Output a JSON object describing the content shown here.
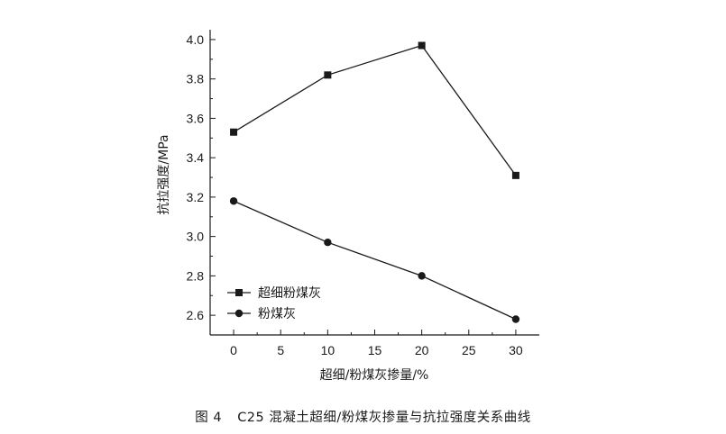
{
  "caption": {
    "figure_no": "图 4",
    "text": "C25 混凝土超细/粉煤灰掺量与抗拉强度关系曲线"
  },
  "chart_data": {
    "type": "line",
    "title": "",
    "xlabel": "超细/粉煤灰掺量/%",
    "ylabel": "抗拉强度/MPa",
    "x": [
      0,
      10,
      20,
      30
    ],
    "xlim": [
      -2.5,
      32.5
    ],
    "ylim": [
      2.5,
      4.05
    ],
    "xticks": [
      0,
      5,
      10,
      15,
      20,
      25,
      30
    ],
    "yticks": [
      2.6,
      2.8,
      3.0,
      3.2,
      3.4,
      3.6,
      3.8,
      4.0
    ],
    "ytick_labels": [
      "2.6",
      "2.8",
      "3.0",
      "3.2",
      "3.4",
      "3.6",
      "3.8",
      "4.0"
    ],
    "grid": false,
    "legend_position": "bottom-left",
    "series": [
      {
        "name": "超细粉煤灰",
        "marker": "square",
        "color": "#1a1a1a",
        "values": [
          3.53,
          3.82,
          3.97,
          3.31
        ]
      },
      {
        "name": "粉煤灰",
        "marker": "circle",
        "color": "#1a1a1a",
        "values": [
          3.18,
          2.97,
          2.8,
          2.58
        ]
      }
    ]
  }
}
